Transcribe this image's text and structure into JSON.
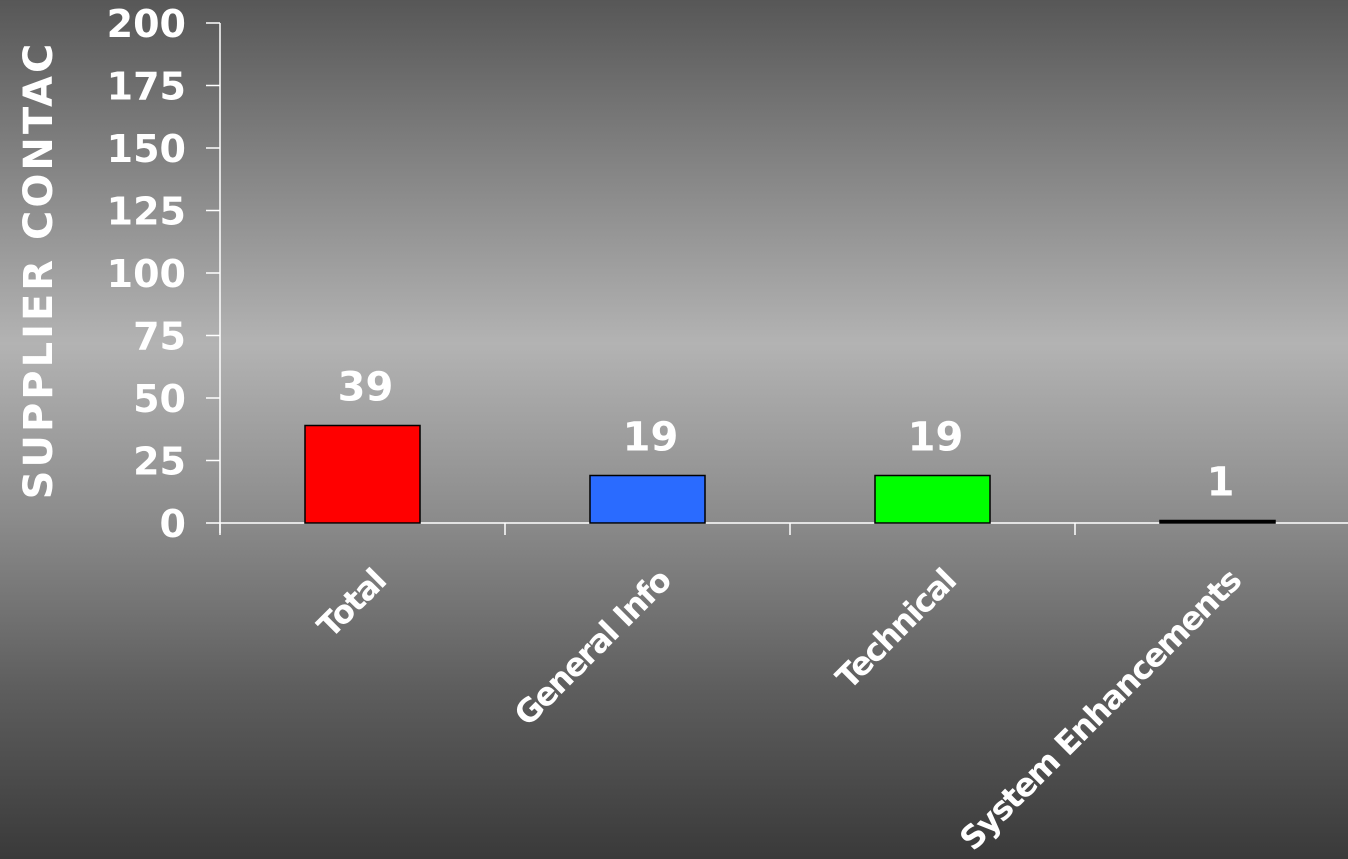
{
  "chart_data": {
    "type": "bar",
    "categories": [
      "Total",
      "General Info",
      "Technical",
      "System Enhancements"
    ],
    "values": [
      39,
      19,
      19,
      1
    ],
    "colors": [
      "#ff0000",
      "#2a6bff",
      "#00ff00",
      "#000000"
    ],
    "ylabel": "SUPPLIER CONTAC",
    "ylim": [
      0,
      200
    ],
    "yticks": [
      "0",
      "25",
      "50",
      "75",
      "100",
      "125",
      "150",
      "175",
      "200"
    ],
    "data_labels": [
      "39",
      "19",
      "19",
      "1"
    ],
    "grid": false,
    "legend": "none"
  }
}
